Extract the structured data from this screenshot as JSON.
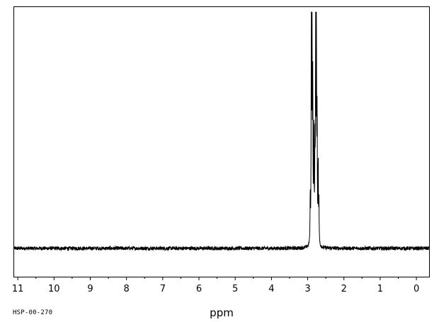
{
  "figure_code": "HSP-00-270",
  "chart_data": {
    "type": "line",
    "title": "",
    "xlabel": "ppm",
    "ylabel": "",
    "xlim": [
      11.1,
      -0.35
    ],
    "x_reversed": true,
    "ylim": [
      -0.12,
      1.02
    ],
    "grid": false,
    "legend": "none",
    "x_ticks": [
      11,
      10,
      9,
      8,
      7,
      6,
      5,
      4,
      3,
      2,
      1,
      0
    ],
    "x_minor_tick_step": 0.5,
    "baseline": 0.0,
    "noise_amplitude": 0.008,
    "series": [
      {
        "peaks": [
          {
            "x": 2.93,
            "y": 0.2
          },
          {
            "x": 2.9,
            "y": 0.92
          },
          {
            "x": 2.88,
            "y": 1.0
          },
          {
            "x": 2.86,
            "y": 0.6
          },
          {
            "x": 2.83,
            "y": 0.45
          },
          {
            "x": 2.8,
            "y": 0.35
          },
          {
            "x": 2.78,
            "y": 0.82
          },
          {
            "x": 2.76,
            "y": 0.91
          },
          {
            "x": 2.74,
            "y": 0.5
          },
          {
            "x": 2.71,
            "y": 0.35
          },
          {
            "x": 2.69,
            "y": 0.18
          }
        ]
      }
    ],
    "colors": {
      "line": "#000000",
      "axis": "#000000",
      "background": "#ffffff"
    }
  }
}
